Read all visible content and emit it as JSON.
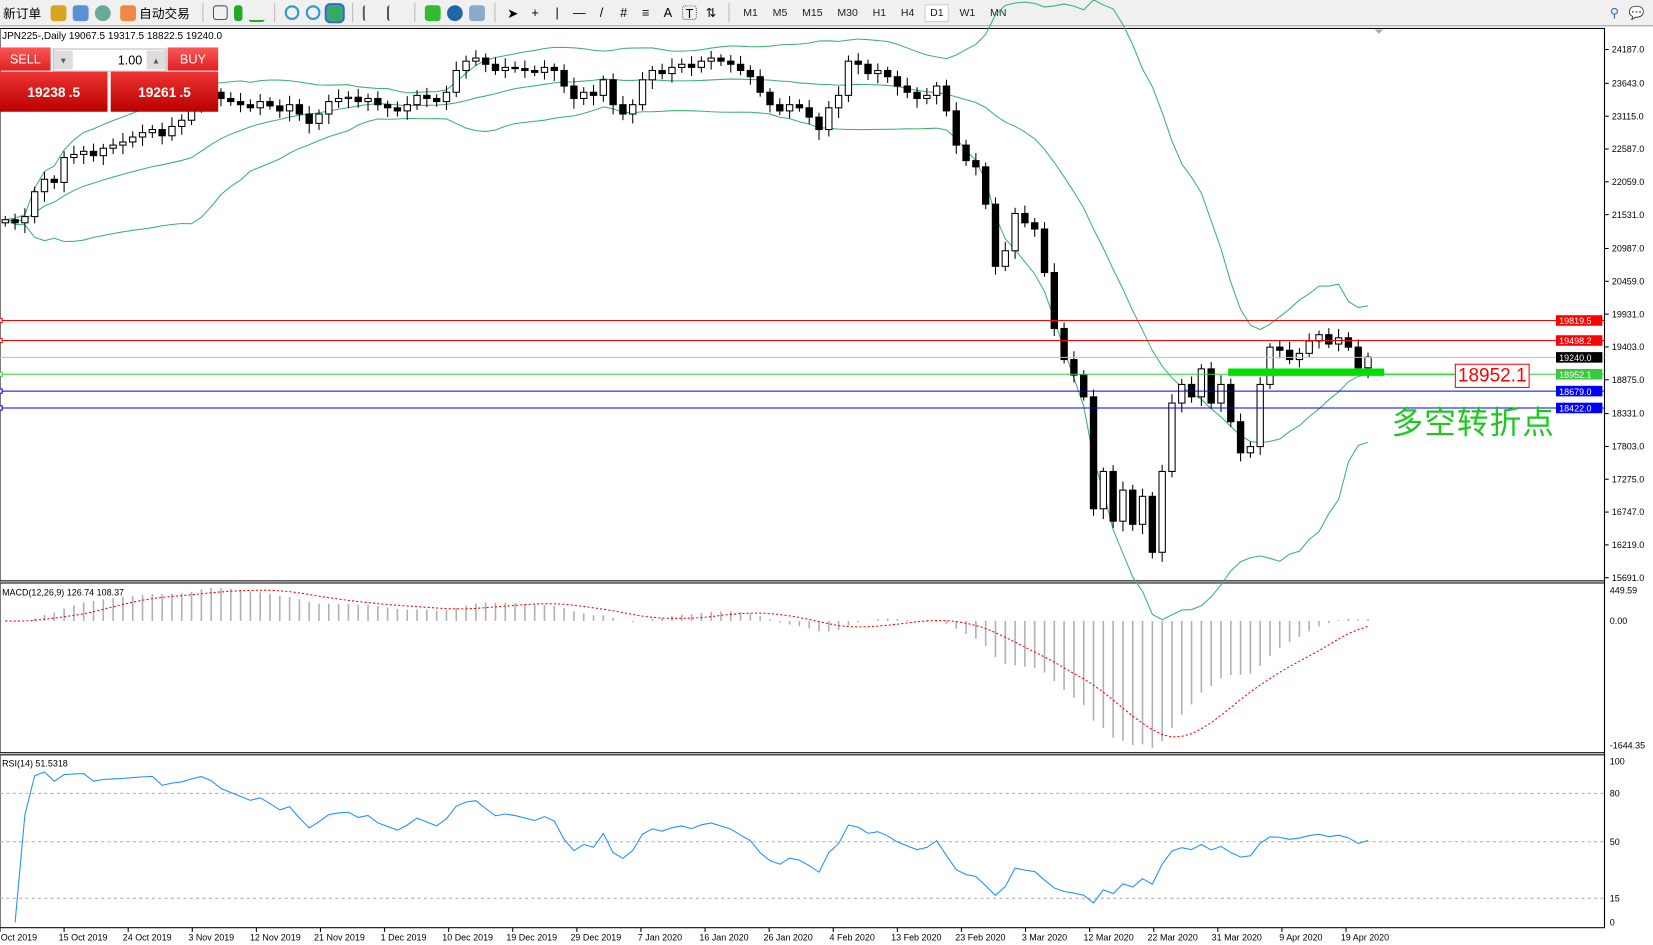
{
  "toolbar": {
    "new_order": "新订单",
    "auto_trading": "自动交易",
    "timeframes": [
      "M1",
      "M5",
      "M15",
      "M30",
      "H1",
      "H4",
      "D1",
      "W1",
      "MN"
    ],
    "active_timeframe": "D1"
  },
  "chart": {
    "header": "JPN225-,Daily  19067.5 19317.5 18822.5 19240.0",
    "symbol": "JPN225-",
    "period": "Daily",
    "open": 19067.5,
    "high": 19317.5,
    "low": 18822.5,
    "close": 19240.0
  },
  "trade_panel": {
    "sell_label": "SELL",
    "buy_label": "BUY",
    "lots": "1.00",
    "sell_main": "19238",
    "sell_frac": ".5",
    "buy_main": "19261",
    "buy_frac": ".5"
  },
  "annotation": {
    "price_label": "18952.1",
    "text": "多空转折点",
    "color": "#1ec81e"
  },
  "chart_data": [
    {
      "type": "candlestick",
      "name": "JPN225-,Daily",
      "price_ticks": [
        "24187.0",
        "23643.0",
        "23115.0",
        "22587.0",
        "22059.0",
        "21531.0",
        "20987.0",
        "20459.0",
        "19931.0",
        "19403.0",
        "18875.0",
        "18331.0",
        "17803.0",
        "17275.0",
        "16747.0",
        "16219.0",
        "15691.0"
      ],
      "ylim": [
        15691,
        24187
      ],
      "date_ticks": [
        "Oct 2019",
        "15 Oct 2019",
        "24 Oct 2019",
        "3 Nov 2019",
        "12 Nov 2019",
        "21 Nov 2019",
        "1 Dec 2019",
        "10 Dec 2019",
        "19 Dec 2019",
        "29 Dec 2019",
        "7 Jan 2020",
        "16 Jan 2020",
        "26 Jan 2020",
        "4 Feb 2020",
        "13 Feb 2020",
        "23 Feb 2020",
        "3 Mar 2020",
        "12 Mar 2020",
        "22 Mar 2020",
        "31 Mar 2020",
        "9 Apr 2020",
        "19 Apr 2020"
      ],
      "closes": [
        21450,
        21400,
        21500,
        21900,
        22100,
        22050,
        22450,
        22500,
        22550,
        22480,
        22600,
        22650,
        22700,
        22780,
        22850,
        22900,
        22800,
        22950,
        23050,
        23300,
        23550,
        23500,
        23400,
        23350,
        23300,
        23250,
        23350,
        23280,
        23200,
        23300,
        23150,
        23000,
        23150,
        23350,
        23400,
        23420,
        23350,
        23400,
        23300,
        23250,
        23200,
        23300,
        23450,
        23400,
        23350,
        23500,
        23850,
        24000,
        24050,
        23950,
        23850,
        23900,
        23880,
        23850,
        23820,
        23900,
        23850,
        23600,
        23400,
        23500,
        23450,
        23700,
        23300,
        23150,
        23300,
        23700,
        23850,
        23800,
        23900,
        23950,
        23900,
        24000,
        24050,
        24000,
        23950,
        23850,
        23750,
        23500,
        23300,
        23200,
        23300,
        23250,
        23100,
        22900,
        23250,
        23450,
        24000,
        23950,
        23800,
        23850,
        23750,
        23600,
        23500,
        23400,
        23450,
        23600,
        23200,
        22650,
        22400,
        22300,
        21700,
        20700,
        20950,
        21550,
        21400,
        21300,
        20600,
        19700,
        19200,
        18950,
        18600,
        16800,
        17400,
        16600,
        17100,
        16550,
        17000,
        16100,
        17400,
        18500,
        18800,
        18600,
        19050,
        18500,
        18800,
        18200,
        17700,
        17800,
        18800,
        19400,
        19350,
        19200,
        19300,
        19500,
        19600,
        19450,
        19550,
        19400,
        19067.5,
        19240
      ],
      "indicator": "Bollinger Bands (20,2)",
      "band_color": "#3cb371",
      "hlines": [
        {
          "label": "19819.5",
          "color": "#ff0000"
        },
        {
          "label": "19498.2",
          "color": "#ff0000"
        },
        {
          "label": "19240.0",
          "color": "#000000"
        },
        {
          "label": "18952.1",
          "color": "#3cc83c"
        },
        {
          "label": "18679.0",
          "color": "#0000ff"
        },
        {
          "label": "18422.0",
          "color": "#0000ff"
        }
      ]
    },
    {
      "type": "macd",
      "title": "MACD(12,26,9) 126.74 108.37",
      "ticks": [
        "449.59",
        "0.00",
        "-1644.35"
      ],
      "ylim": [
        -1644.35,
        449.59
      ],
      "main": 126.74,
      "signal": 108.37
    },
    {
      "type": "line",
      "title": "RSI(14) 51.5318",
      "ticks": [
        "100",
        "80",
        "50",
        "15",
        "0"
      ],
      "ylim": [
        0,
        100
      ],
      "levels": [
        80,
        50,
        15
      ],
      "value": 51.5318,
      "color": "#1e90ff"
    }
  ]
}
